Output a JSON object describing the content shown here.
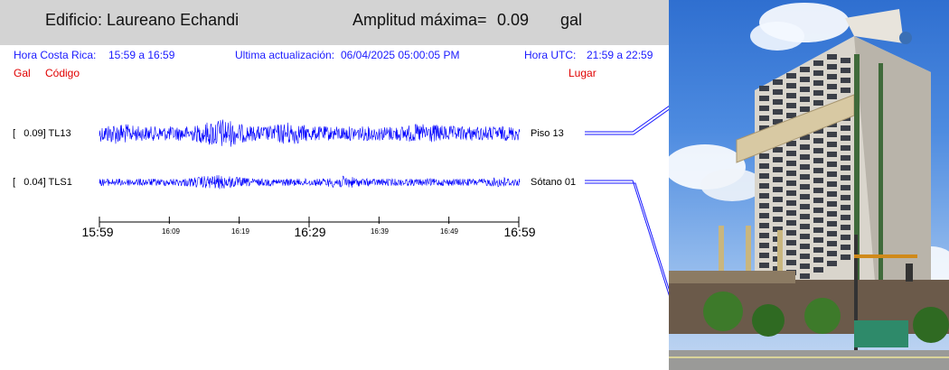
{
  "header": {
    "building": "Edificio: Laureano Echandi",
    "amplitude_label": "Amplitud máxima=",
    "amplitude_value": "0.09",
    "amplitude_unit": "gal"
  },
  "info": {
    "costa_rica_label": "Hora Costa Rica:",
    "costa_rica_range": "15:59 a 16:59",
    "update_label": "Ultima actualización:",
    "update_value": "06/04/2025 05:00:05 PM",
    "utc_label": "Hora UTC:",
    "utc_range": "21:59 a 22:59"
  },
  "column_labels": {
    "gal": "Gal",
    "code": "Código",
    "place": "Lugar"
  },
  "channels": [
    {
      "amplitude": "[   0.09] TL13",
      "location": "Piso 13",
      "color": "#0000ff"
    },
    {
      "amplitude": "[   0.04] TLS1",
      "location": "Sótano 01",
      "color": "#0000ff"
    }
  ],
  "time_axis": {
    "major_labels": [
      "15:59",
      "16:29",
      "16:59"
    ],
    "minor_labels": [
      "16:09",
      "16:19",
      "16:39",
      "16:49"
    ]
  }
}
